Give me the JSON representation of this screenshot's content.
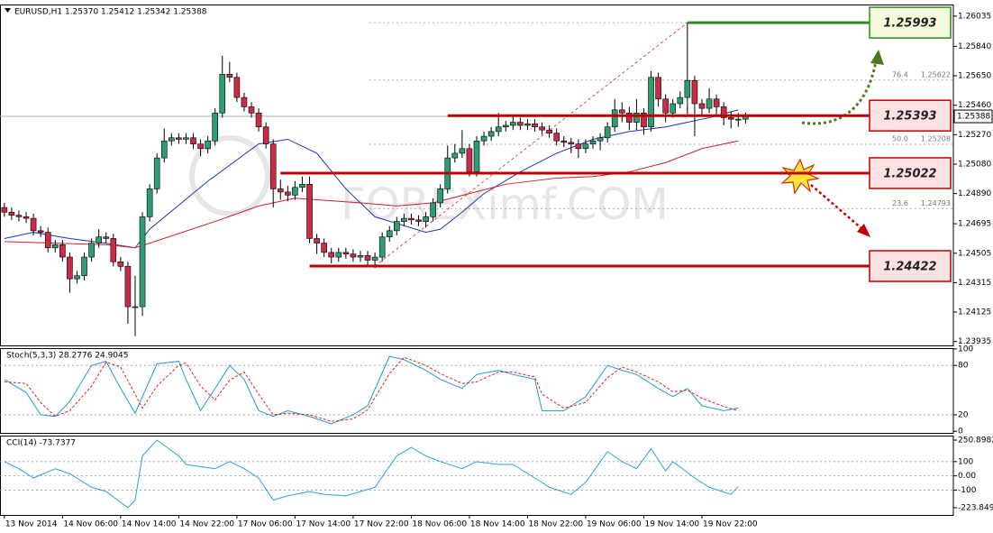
{
  "chart_data": [
    {
      "type": "candlestick",
      "title": "EURUSD,H1  1.25370 1.25412 1.25342 1.25388",
      "watermark": "FOREXimf.COM",
      "xlim": [
        -0.6,
        130.6
      ],
      "xticks": [
        {
          "value": 0,
          "label": "13 Nov 2014"
        },
        {
          "value": 8,
          "label": "14 Nov 06:00"
        },
        {
          "value": 16,
          "label": "14 Nov 14:00"
        },
        {
          "value": 24,
          "label": "14 Nov 22:00"
        },
        {
          "value": 32,
          "label": "17 Nov 06:00"
        },
        {
          "value": 40,
          "label": "17 Nov 14:00"
        },
        {
          "value": 48,
          "label": "17 Nov 22:00"
        },
        {
          "value": 56,
          "label": "18 Nov 06:00"
        },
        {
          "value": 64,
          "label": "18 Nov 14:00"
        },
        {
          "value": 72,
          "label": "18 Nov 22:00"
        },
        {
          "value": 80,
          "label": "19 Nov 06:00"
        },
        {
          "value": 88,
          "label": "19 Nov 14:00"
        },
        {
          "value": 96,
          "label": "19 Nov 22:00"
        }
      ],
      "ylim": [
        1.2391,
        1.2611
      ],
      "yticks": [
        1.26035,
        {
          "value": 1.2584,
          "label": "1.25840"
        },
        {
          "value": 1.2565,
          "label": "1.25650"
        },
        {
          "value": 1.2546,
          "label": "1.25460"
        },
        {
          "value": 1.2527,
          "label": "1.25270"
        },
        {
          "value": 1.2508,
          "label": "1.25080"
        },
        {
          "value": 1.2489,
          "label": "1.24890"
        },
        1.24695,
        1.24505,
        1.24315,
        1.24125,
        1.23935
      ],
      "grid": false,
      "up_color": "#2f9d72",
      "down_color": "#c92c44",
      "open": [
        1.248,
        1.2477,
        1.2475,
        1.2474,
        1.2473,
        1.2465,
        1.2464,
        1.2454,
        1.2456,
        1.2448,
        1.2434,
        1.2436,
        1.2448,
        1.2457,
        1.2461,
        1.246,
        1.2445,
        1.2442,
        1.2416,
        1.2416,
        1.2474,
        1.2492,
        1.2512,
        1.2523,
        1.2525,
        1.2524,
        1.2525,
        1.2521,
        1.2518,
        1.2523,
        1.2541,
        1.2566,
        1.2564,
        1.2551,
        1.2545,
        1.2541,
        1.2532,
        1.2521,
        1.2492,
        1.249,
        1.2488,
        1.2493,
        1.2495,
        1.246,
        1.2457,
        1.2451,
        1.2448,
        1.2451,
        1.245,
        1.2448,
        1.2449,
        1.2446,
        1.2448,
        1.2461,
        1.2465,
        1.2471,
        1.2473,
        1.2472,
        1.2471,
        1.2474,
        1.2483,
        1.2492,
        1.2512,
        1.2515,
        1.2518,
        1.2503,
        1.2523,
        1.2526,
        1.2529,
        1.2532,
        1.2533,
        1.2535,
        1.2533,
        1.2534,
        1.2532,
        1.253,
        1.2528,
        1.2523,
        1.2522,
        1.2521,
        1.2518,
        1.2521,
        1.2523,
        1.2525,
        1.2532,
        1.2543,
        1.2541,
        1.2535,
        1.2541,
        1.2532,
        1.2564,
        1.255,
        1.2541,
        1.2547,
        1.2551,
        1.2562,
        1.2547,
        1.2544,
        1.255,
        1.2545,
        1.2538,
        1.2537,
        1.2537
      ],
      "high": [
        1.2483,
        1.248,
        1.2478,
        1.2477,
        1.2476,
        1.2468,
        1.2467,
        1.2459,
        1.2459,
        1.2451,
        1.2439,
        1.2451,
        1.246,
        1.2466,
        1.2464,
        1.2463,
        1.2448,
        1.2445,
        1.2436,
        1.2477,
        1.2495,
        1.2515,
        1.2531,
        1.2528,
        1.2528,
        1.2528,
        1.2528,
        1.2524,
        1.2526,
        1.2544,
        1.2578,
        1.2574,
        1.2567,
        1.2554,
        1.2548,
        1.2544,
        1.2535,
        1.2524,
        1.2498,
        1.2494,
        1.2497,
        1.25,
        1.25,
        1.2463,
        1.246,
        1.2454,
        1.2454,
        1.2454,
        1.2453,
        1.2452,
        1.2452,
        1.2451,
        1.2464,
        1.2468,
        1.2474,
        1.2476,
        1.2476,
        1.2475,
        1.2477,
        1.2486,
        1.2495,
        1.252,
        1.2521,
        1.253,
        1.2521,
        1.2526,
        1.2529,
        1.2532,
        1.2541,
        1.2536,
        1.254,
        1.2538,
        1.2537,
        1.2537,
        1.2535,
        1.2533,
        1.2531,
        1.2526,
        1.2525,
        1.2524,
        1.2524,
        1.2526,
        1.2528,
        1.2535,
        1.255,
        1.2548,
        1.2545,
        1.255,
        1.2544,
        1.2568,
        1.2567,
        1.2553,
        1.255,
        1.2555,
        1.25993,
        1.2565,
        1.255,
        1.2557,
        1.2553,
        1.2548,
        1.2542,
        1.2541,
        1.25412
      ],
      "low": [
        1.2474,
        1.2472,
        1.2471,
        1.247,
        1.2462,
        1.2461,
        1.2451,
        1.2451,
        1.2445,
        1.2425,
        1.2431,
        1.2433,
        1.2445,
        1.2454,
        1.2457,
        1.2442,
        1.2439,
        1.2405,
        1.2397,
        1.241,
        1.2471,
        1.2489,
        1.2509,
        1.252,
        1.2521,
        1.2521,
        1.2518,
        1.2513,
        1.2515,
        1.252,
        1.2538,
        1.2561,
        1.2548,
        1.2542,
        1.2538,
        1.2529,
        1.2518,
        1.248,
        1.2485,
        1.2484,
        1.2485,
        1.249,
        1.2457,
        1.245,
        1.2448,
        1.2444,
        1.2445,
        1.2447,
        1.2445,
        1.2445,
        1.2442,
        1.2441,
        1.2445,
        1.2458,
        1.2462,
        1.2468,
        1.2469,
        1.2468,
        1.2467,
        1.2471,
        1.248,
        1.2489,
        1.2509,
        1.2512,
        1.25,
        1.25,
        1.252,
        1.2523,
        1.2526,
        1.2529,
        1.253,
        1.253,
        1.253,
        1.2529,
        1.2527,
        1.2525,
        1.252,
        1.2519,
        1.2515,
        1.2512,
        1.2515,
        1.2518,
        1.2517,
        1.2522,
        1.2529,
        1.2535,
        1.253,
        1.253,
        1.2527,
        1.2529,
        1.2545,
        1.2535,
        1.2538,
        1.2544,
        1.254,
        1.2526,
        1.254,
        1.2541,
        1.254,
        1.2533,
        1.2531,
        1.2532,
        1.25342
      ],
      "close": [
        1.2477,
        1.2475,
        1.2474,
        1.2473,
        1.2465,
        1.2464,
        1.2454,
        1.2456,
        1.2448,
        1.2434,
        1.2436,
        1.2448,
        1.2457,
        1.2461,
        1.246,
        1.2445,
        1.2442,
        1.2416,
        1.2416,
        1.2474,
        1.2492,
        1.2512,
        1.2523,
        1.2525,
        1.2524,
        1.2525,
        1.2521,
        1.2518,
        1.2523,
        1.2541,
        1.2566,
        1.2564,
        1.2551,
        1.2545,
        1.2541,
        1.2532,
        1.2521,
        1.2492,
        1.249,
        1.2488,
        1.2493,
        1.2495,
        1.246,
        1.2457,
        1.2451,
        1.2448,
        1.2451,
        1.245,
        1.2448,
        1.2449,
        1.2446,
        1.2448,
        1.2461,
        1.2465,
        1.2471,
        1.2473,
        1.2472,
        1.2471,
        1.2474,
        1.2483,
        1.2492,
        1.2512,
        1.2515,
        1.2518,
        1.2503,
        1.2523,
        1.2526,
        1.2529,
        1.2532,
        1.2533,
        1.2535,
        1.2533,
        1.2534,
        1.2532,
        1.253,
        1.2528,
        1.2523,
        1.2522,
        1.2521,
        1.2518,
        1.2521,
        1.2523,
        1.2525,
        1.2532,
        1.2543,
        1.2541,
        1.2535,
        1.2541,
        1.2532,
        1.2564,
        1.255,
        1.2541,
        1.2547,
        1.2551,
        1.2562,
        1.2547,
        1.2544,
        1.255,
        1.2545,
        1.2538,
        1.2537,
        1.2537,
        1.25388
      ],
      "series": [
        {
          "color": "#1f35b8",
          "x": [
            0,
            4,
            9,
            14,
            18,
            20,
            28,
            35,
            39,
            43,
            47,
            51,
            58,
            60,
            63,
            66,
            71,
            76,
            81,
            86,
            91,
            97,
            101
          ],
          "values": [
            1.246,
            1.2464,
            1.246,
            1.2457,
            1.2454,
            1.2466,
            1.2497,
            1.2521,
            1.2524,
            1.2515,
            1.2492,
            1.2474,
            1.2464,
            1.2466,
            1.2477,
            1.2489,
            1.2503,
            1.2515,
            1.2524,
            1.2529,
            1.2532,
            1.2538,
            1.2543
          ]
        },
        {
          "color": "#d0202a",
          "x": [
            0,
            7,
            14,
            18,
            20,
            29,
            35,
            40,
            49,
            54,
            59,
            64,
            69,
            76,
            81,
            86,
            91,
            96,
            101
          ],
          "values": [
            1.2458,
            1.2457,
            1.2456,
            1.2454,
            1.2457,
            1.2471,
            1.2481,
            1.2486,
            1.2483,
            1.2481,
            1.2483,
            1.2489,
            1.2495,
            1.2499,
            1.25,
            1.2503,
            1.2509,
            1.2518,
            1.2523
          ]
        }
      ],
      "levels": [
        {
          "value": 1.25993,
          "start": 94,
          "color": "#2e8b1e",
          "fill": "#f3fbdc"
        },
        {
          "value": 1.25393,
          "start": 61,
          "color": "#c00000",
          "fill": "#fde2e4"
        },
        {
          "value": 1.25022,
          "start": 38,
          "color": "#c00000",
          "fill": "#fde2e4"
        },
        {
          "value": 1.24422,
          "start": 42,
          "color": "#c00000",
          "fill": "#fde2e4"
        }
      ],
      "fib": [
        {
          "label": "76.4",
          "value": 1.25622
        },
        {
          "label": "50.0",
          "value": 1.25208
        },
        {
          "label": "23.6",
          "value": 1.24793
        }
      ],
      "last_price": 1.25388
    },
    {
      "type": "line",
      "title": "Stoch(5,3,3) 28.2776 24.9045",
      "xlim": [
        -0.6,
        130.6
      ],
      "ylim": [
        -2,
        101
      ],
      "yticks": [
        0,
        20,
        80,
        100
      ],
      "grid": true,
      "series": [
        {
          "color": "#1e9bd7",
          "x": [
            0,
            3,
            5,
            7,
            9,
            12,
            14,
            16,
            18,
            19,
            21,
            24,
            25,
            27,
            29,
            31,
            33,
            35,
            37,
            39,
            42,
            45,
            48,
            50,
            53,
            55,
            58,
            60,
            63,
            65,
            68,
            70,
            73,
            74,
            77,
            80,
            83,
            85,
            87,
            90,
            92,
            94,
            96,
            99,
            101
          ],
          "values": [
            63,
            47,
            20,
            18,
            36,
            80,
            85,
            52,
            22,
            42,
            82,
            85,
            63,
            25,
            52,
            80,
            63,
            25,
            18,
            25,
            18,
            9,
            20,
            31,
            91,
            87,
            74,
            63,
            52,
            69,
            74,
            69,
            63,
            25,
            25,
            42,
            80,
            74,
            69,
            52,
            42,
            52,
            31,
            25,
            28.2776
          ]
        },
        {
          "color": "#e02020",
          "style": "dashed",
          "x": [
            0,
            3,
            5,
            7,
            9,
            12,
            14,
            16,
            18,
            19,
            21,
            24,
            25,
            27,
            29,
            31,
            33,
            35,
            37,
            39,
            42,
            45,
            48,
            50,
            53,
            55,
            58,
            60,
            63,
            65,
            68,
            70,
            73,
            74,
            77,
            80,
            83,
            85,
            87,
            90,
            92,
            94,
            96,
            99,
            101
          ],
          "values": [
            60,
            58,
            35,
            18,
            25,
            55,
            84,
            78,
            45,
            28,
            55,
            80,
            83,
            55,
            38,
            62,
            72,
            45,
            20,
            22,
            20,
            12,
            15,
            26,
            70,
            90,
            80,
            70,
            58,
            60,
            72,
            72,
            66,
            45,
            28,
            35,
            65,
            78,
            72,
            60,
            48,
            50,
            40,
            30,
            24.9045
          ]
        }
      ]
    },
    {
      "type": "line",
      "title": "CCI(14) -73.7377",
      "xlim": [
        -0.6,
        130.6
      ],
      "ylim": [
        -274.5,
        282.5
      ],
      "yticks": [
        250.8982,
        100,
        {
          "value": 0,
          "label": "0.00"
        },
        -100,
        -223.8491
      ],
      "grid": true,
      "series": [
        {
          "color": "#2aa3dc",
          "x": [
            0,
            2,
            4,
            7,
            9,
            12,
            14,
            17,
            18,
            19,
            21,
            24,
            25,
            29,
            31,
            33,
            35,
            37,
            39,
            42,
            44,
            47,
            49,
            51,
            54,
            56,
            58,
            60,
            63,
            65,
            68,
            70,
            73,
            75,
            78,
            80,
            83,
            85,
            87,
            89,
            91,
            92,
            95,
            97,
            100,
            101
          ],
          "values": [
            100,
            50,
            -15,
            50,
            15,
            -80,
            -110,
            -223.8491,
            -170,
            140,
            250.8982,
            140,
            80,
            50,
            100,
            50,
            -15,
            -170,
            -140,
            -110,
            -130,
            -140,
            -110,
            -80,
            140,
            200,
            140,
            100,
            50,
            100,
            80,
            80,
            -15,
            -80,
            -130,
            -45,
            170,
            100,
            50,
            190,
            35,
            100,
            -15,
            -80,
            -130,
            -73.7377
          ]
        }
      ]
    }
  ]
}
